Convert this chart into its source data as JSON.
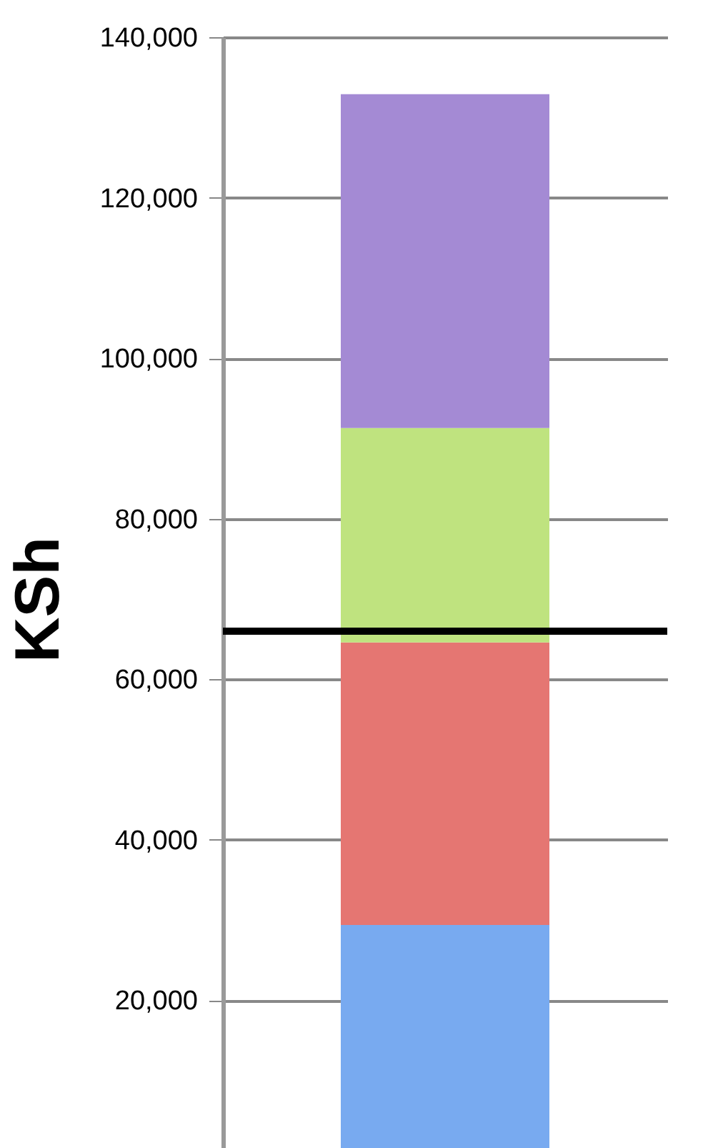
{
  "chart_data": {
    "type": "bar",
    "stacked": true,
    "ylabel": "KSh",
    "categories": [
      null
    ],
    "series": [
      {
        "color": "#78aaf0",
        "values": [
          29400
        ]
      },
      {
        "color": "#e57672",
        "values": [
          35200
        ]
      },
      {
        "color": "#bfe37f",
        "values": [
          26700
        ]
      },
      {
        "color": "#a48ad4",
        "values": [
          41600
        ]
      }
    ],
    "ylim": [
      0,
      140000
    ],
    "yticks": [
      {
        "value": 20000,
        "label": "20,000"
      },
      {
        "value": 40000,
        "label": "40,000"
      },
      {
        "value": 60000,
        "label": "60,000"
      },
      {
        "value": 80000,
        "label": "80,000"
      },
      {
        "value": 100000,
        "label": "100,000"
      },
      {
        "value": 120000,
        "label": "120,000"
      },
      {
        "value": 140000,
        "label": "140,000"
      }
    ],
    "grid": "y",
    "legend": false,
    "tick_labels": "y",
    "ref_lines": [
      {
        "axis": "y",
        "value": 66000,
        "color": "#000000"
      }
    ]
  }
}
